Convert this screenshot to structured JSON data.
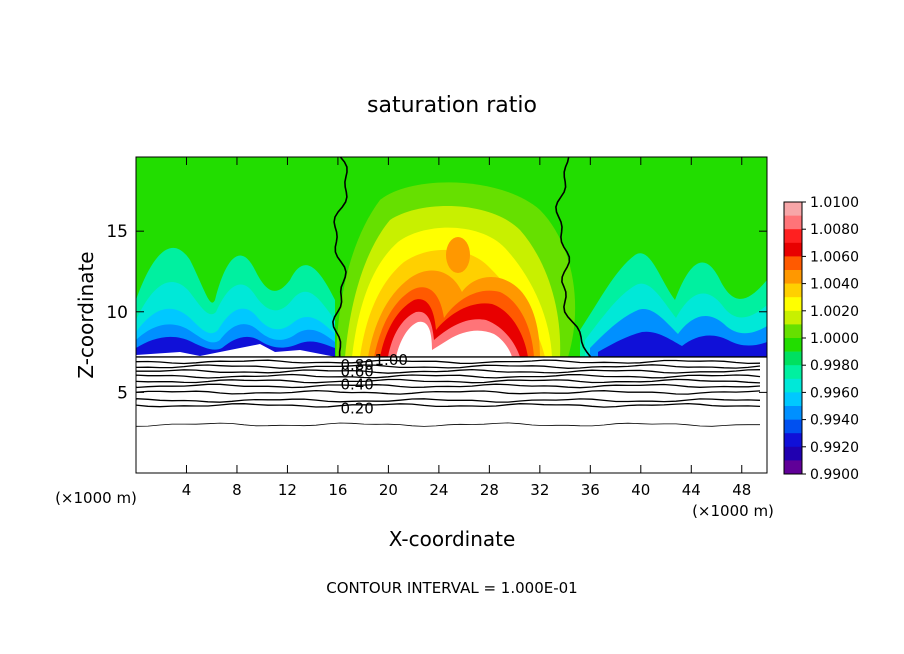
{
  "chart_data": {
    "type": "heatmap",
    "title": "saturation ratio",
    "xlabel": "X-coordinate",
    "ylabel": "Z-coordinate",
    "x_unit": "(×1000 m)",
    "xlim": [
      0,
      50
    ],
    "ylim": [
      0,
      19.6
    ],
    "xticks": [
      4,
      8,
      12,
      16,
      20,
      24,
      28,
      32,
      36,
      40,
      44,
      48
    ],
    "yticks": [
      5,
      10,
      15
    ],
    "footer": "CONTOUR INTERVAL = 1.000E-01",
    "colorbar": {
      "min": 0.99,
      "max": 1.01,
      "labels": [
        "1.0100",
        "1.0080",
        "1.0060",
        "1.0040",
        "1.0020",
        "1.0000",
        "0.9980",
        "0.9960",
        "0.9940",
        "0.9920",
        "0.9900"
      ],
      "colors": [
        "#f7a6a8",
        "#ff7478",
        "#ff2020",
        "#e80000",
        "#ff5a00",
        "#ff9800",
        "#ffd000",
        "#ffff00",
        "#c8f000",
        "#66e000",
        "#22dd00",
        "#00e060",
        "#00f0a0",
        "#00e8d8",
        "#00c8ff",
        "#0090ff",
        "#0050f0",
        "#1010d8",
        "#2000b0",
        "#600098"
      ]
    },
    "cloud_base_z": 7.2,
    "contour_lines": [
      {
        "value": 1.0,
        "label": "1.00"
      },
      {
        "value": 0.8,
        "label": "0.80"
      },
      {
        "value": 0.6,
        "label": "0.60"
      },
      {
        "value": 0.4,
        "label": "0.40"
      },
      {
        "value": 0.2,
        "label": "0.20"
      }
    ],
    "contour_z": [
      6.9,
      6.6,
      6.3,
      6.0,
      5.7,
      5.4,
      5.0,
      4.5,
      4.2,
      3.0
    ],
    "boundary_x": [
      16.2,
      33.8
    ]
  }
}
